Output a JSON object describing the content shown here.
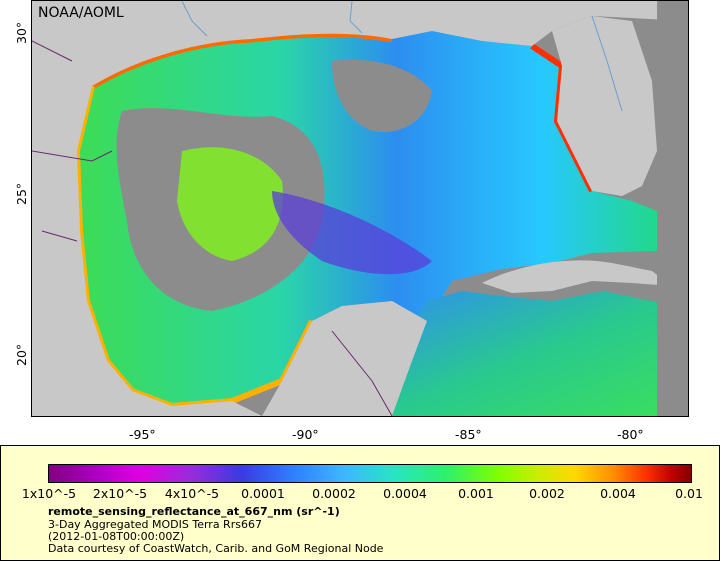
{
  "map": {
    "credit": "NOAA/AOML",
    "lat_ticks": [
      "30°",
      "25°",
      "20°"
    ],
    "lon_ticks": [
      "-95°",
      "-90°",
      "-85°",
      "-80°"
    ],
    "colors": {
      "land": "#c8c8c8",
      "no_data": "#8c8c8c",
      "boundary": "#6b2a6b",
      "water_line": "#6a9fd0"
    }
  },
  "legend": {
    "tick_labels": [
      "1x10^-5",
      "2x10^-5",
      "4x10^-5",
      "0.0001",
      "0.0002",
      "0.0004",
      "0.001",
      "0.002",
      "0.004",
      "0.01"
    ],
    "title": "remote_sensing_reflectance_at_667_nm (sr^-1)",
    "subtitle": "3-Day Aggregated MODIS Terra Rrs667",
    "date": "(2012-01-08T00:00:00Z)",
    "attribution": "Data courtesy of CoastWatch, Carib. and GoM Regional Node",
    "background": "#ffffcc"
  }
}
